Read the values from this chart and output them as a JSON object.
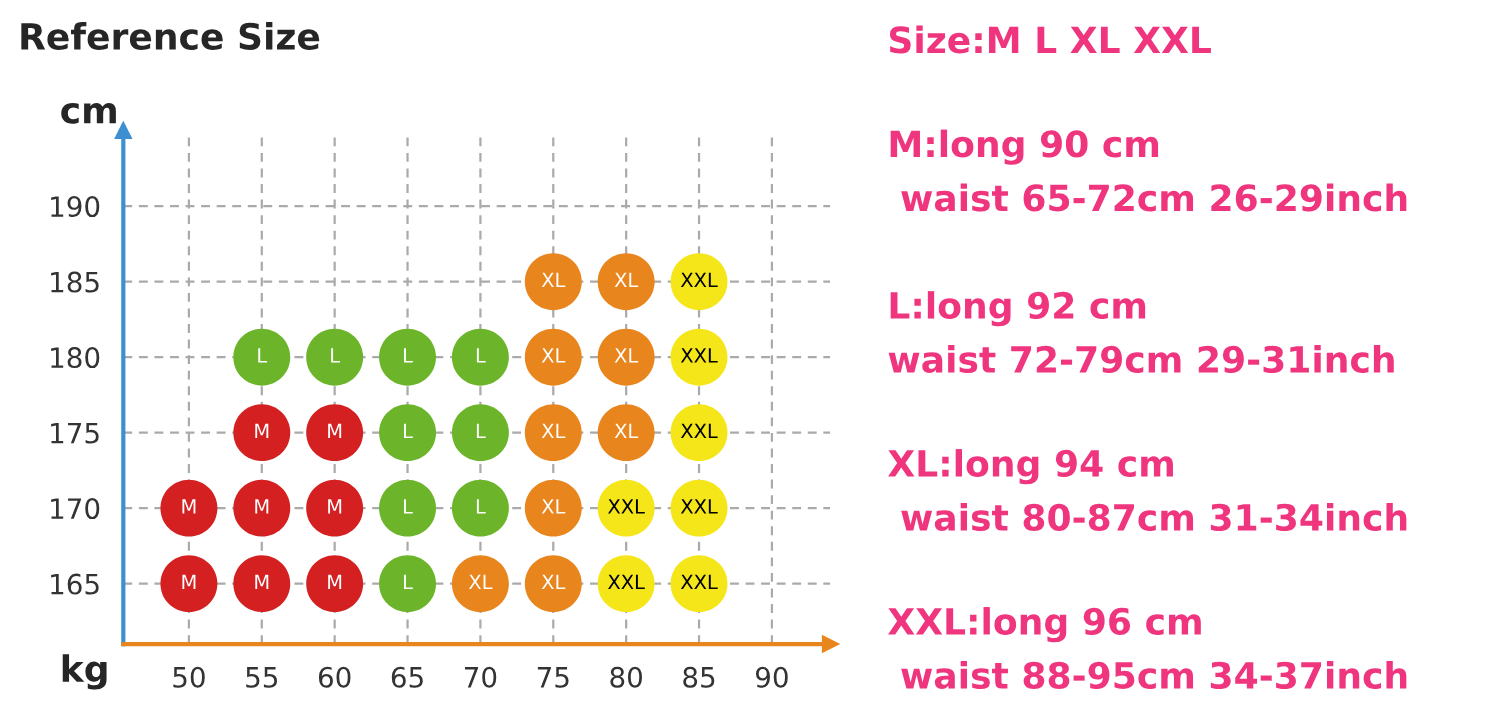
{
  "chart_data": {
    "type": "scatter",
    "title": "Reference Size",
    "xlabel": "kg",
    "ylabel": "cm",
    "xlim": [
      45.5,
      94
    ],
    "ylim": [
      161,
      195
    ],
    "xticks": [
      50,
      55,
      60,
      65,
      70,
      75,
      80,
      85,
      90
    ],
    "yticks": [
      165,
      170,
      175,
      180,
      185,
      190
    ],
    "grid": true,
    "legend": false,
    "marker": "circle",
    "series": [
      {
        "name": "M",
        "color": "#d42020",
        "x": [
          55,
          60,
          50,
          55,
          60,
          50,
          55,
          60
        ],
        "values": [
          175,
          175,
          170,
          170,
          170,
          165,
          165,
          165
        ]
      },
      {
        "name": "L",
        "color": "#6cb52a",
        "x": [
          55,
          60,
          65,
          70,
          65,
          70,
          65,
          70,
          65
        ],
        "values": [
          180,
          180,
          180,
          180,
          175,
          175,
          170,
          170,
          165
        ]
      },
      {
        "name": "XL",
        "color": "#e8851c",
        "x": [
          75,
          80,
          75,
          80,
          75,
          80,
          75,
          70,
          75
        ],
        "values": [
          185,
          185,
          180,
          180,
          175,
          175,
          170,
          165,
          165
        ]
      },
      {
        "name": "XXL",
        "color": "#f5e61a",
        "x": [
          85,
          85,
          85,
          80,
          85,
          80,
          85
        ],
        "values": [
          185,
          180,
          175,
          170,
          170,
          165,
          165
        ]
      }
    ],
    "annotations": [
      "Size:M L XL XXL",
      "M:long 90 cm",
      " waist 65-72cm 26-29inch",
      "L:long 92 cm",
      "waist 72-79cm 29-31inch",
      "XL:long 94 cm",
      " waist 80-87cm 31-34inch",
      "XXL:long 96 cm",
      " waist 88-95cm 34-37inch"
    ]
  }
}
